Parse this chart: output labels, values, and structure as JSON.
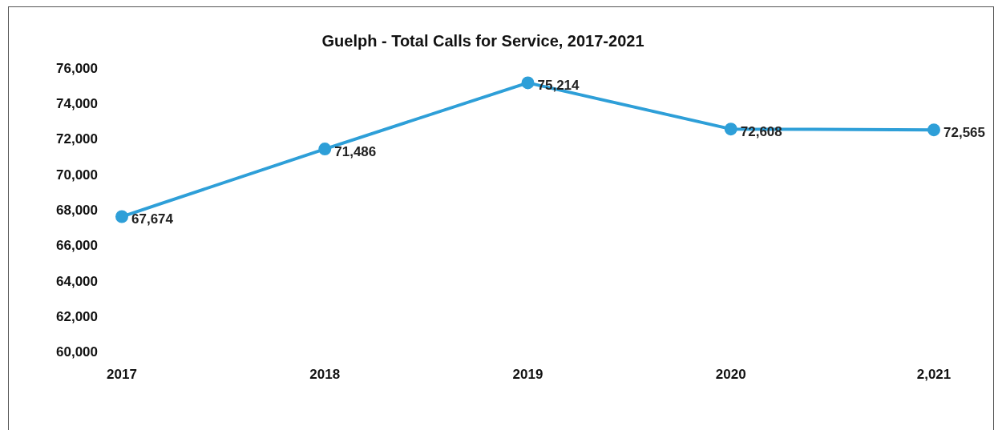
{
  "chart_data": {
    "type": "line",
    "title": "Guelph - Total Calls for Service, 2017-2021",
    "categories": [
      "2017",
      "2018",
      "2019",
      "2020",
      "2,021"
    ],
    "series": [
      {
        "color": "#2e9fd8",
        "values": [
          67674,
          71486,
          75214,
          72608,
          72565
        ]
      }
    ],
    "value_labels": [
      "67,674",
      "71,486",
      "75,214",
      "72,608",
      "72,565"
    ],
    "ylim": [
      60000,
      76000
    ],
    "yticks": [
      {
        "value": 60000,
        "label": "60,000"
      },
      {
        "value": 62000,
        "label": "62,000"
      },
      {
        "value": 64000,
        "label": "64,000"
      },
      {
        "value": 66000,
        "label": "66,000"
      },
      {
        "value": 68000,
        "label": "68,000"
      },
      {
        "value": 70000,
        "label": "70,000"
      },
      {
        "value": 72000,
        "label": "72,000"
      },
      {
        "value": 74000,
        "label": "74,000"
      },
      {
        "value": 76000,
        "label": "76,000"
      }
    ],
    "grid": false,
    "legend": false,
    "marker": "circle",
    "line_style": "solid"
  }
}
